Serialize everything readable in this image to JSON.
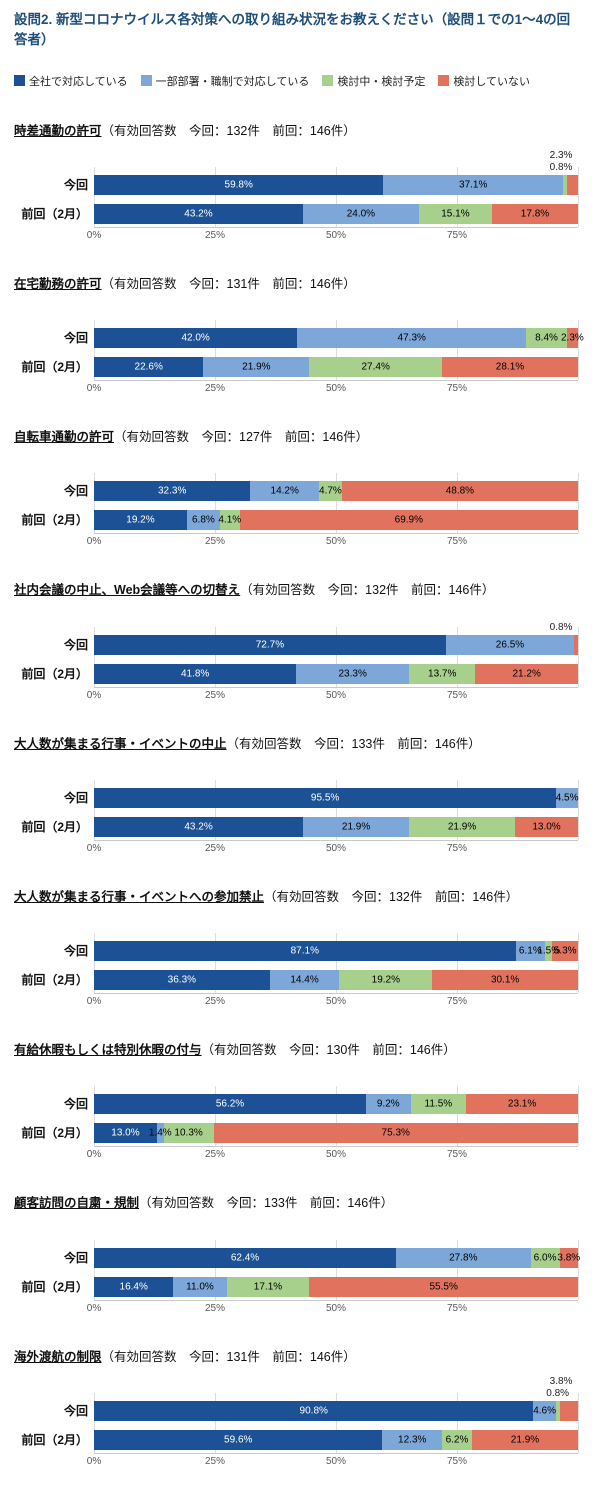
{
  "header": {
    "title": "設問2. 新型コロナウイルス各対策への取り組み状況をお教えください（設問１での1〜4の回答者）"
  },
  "legend": {
    "items": [
      {
        "label": "全社で対応している",
        "color": "#1c5295"
      },
      {
        "label": "一部部署・職制で対応している",
        "color": "#7ca7d8"
      },
      {
        "label": "検討中・検討予定",
        "color": "#a8d08d"
      },
      {
        "label": "検討していない",
        "color": "#e1735e"
      }
    ]
  },
  "axis": {
    "ticks": [
      "0%",
      "25%",
      "50%",
      "75%"
    ],
    "tick_positions": [
      0,
      25,
      50,
      75
    ],
    "grid_positions": [
      0,
      25,
      50,
      75,
      100
    ],
    "xlim": [
      0,
      100
    ]
  },
  "chart_common": {
    "type": "bar",
    "orientation": "horizontal-stacked",
    "series": [
      "全社で対応している",
      "一部部署・職制で対応している",
      "検討中・検討予定",
      "検討していない"
    ],
    "value_unit": "%"
  },
  "chart_data": [
    {
      "title": "時差通勤の許可",
      "subtitle": "（有効回答数　今回：132件　前回：146件）",
      "rows": [
        {
          "label": "今回",
          "values": [
            59.8,
            37.1,
            0.8,
            2.3
          ],
          "label_pos": [
            "in",
            "in",
            "above2",
            "above1"
          ]
        },
        {
          "label": "前回（2月）",
          "values": [
            43.2,
            24.0,
            15.1,
            17.8
          ]
        }
      ]
    },
    {
      "title": "在宅勤務の許可",
      "subtitle": "（有効回答数　今回：131件　前回：146件）",
      "rows": [
        {
          "label": "今回",
          "values": [
            42.0,
            47.3,
            8.4,
            2.3
          ]
        },
        {
          "label": "前回（2月）",
          "values": [
            22.6,
            21.9,
            27.4,
            28.1
          ]
        }
      ]
    },
    {
      "title": "自転車通勤の許可",
      "subtitle": "（有効回答数　今回：127件　前回：146件）",
      "rows": [
        {
          "label": "今回",
          "values": [
            32.3,
            14.2,
            4.7,
            48.8
          ]
        },
        {
          "label": "前回（2月）",
          "values": [
            19.2,
            6.8,
            4.1,
            69.9
          ]
        }
      ]
    },
    {
      "title": "社内会議の中止、Web会議等への切替え",
      "subtitle": "（有効回答数　今回：132件　前回：146件）",
      "rows": [
        {
          "label": "今回",
          "values": [
            72.7,
            26.5,
            0.0,
            0.8
          ],
          "label_pos": [
            "in",
            "in",
            "in",
            "above2"
          ]
        },
        {
          "label": "前回（2月）",
          "values": [
            41.8,
            23.3,
            13.7,
            21.2
          ]
        }
      ]
    },
    {
      "title": "大人数が集まる行事・イベントの中止",
      "subtitle": "（有効回答数　今回：133件　前回：146件）",
      "rows": [
        {
          "label": "今回",
          "values": [
            95.5,
            4.5,
            0.0,
            0.0
          ]
        },
        {
          "label": "前回（2月）",
          "values": [
            43.2,
            21.9,
            21.9,
            13.0
          ]
        }
      ]
    },
    {
      "title": "大人数が集まる行事・イベントへの参加禁止",
      "subtitle": "（有効回答数　今回：132件　前回：146件）",
      "rows": [
        {
          "label": "今回",
          "values": [
            87.1,
            6.1,
            1.5,
            5.3
          ]
        },
        {
          "label": "前回（2月）",
          "values": [
            36.3,
            14.4,
            19.2,
            30.1
          ]
        }
      ]
    },
    {
      "title": "有給休暇もしくは特別休暇の付与",
      "subtitle": "（有効回答数　今回：130件　前回：146件）",
      "rows": [
        {
          "label": "今回",
          "values": [
            56.2,
            9.2,
            11.5,
            23.1
          ]
        },
        {
          "label": "前回（2月）",
          "values": [
            13.0,
            1.4,
            10.3,
            75.3
          ]
        }
      ]
    },
    {
      "title": "顧客訪問の自粛・規制",
      "subtitle": "（有効回答数　今回：133件　前回：146件）",
      "rows": [
        {
          "label": "今回",
          "values": [
            62.4,
            27.8,
            6.0,
            3.8
          ]
        },
        {
          "label": "前回（2月）",
          "values": [
            16.4,
            11.0,
            17.1,
            55.5
          ]
        }
      ]
    },
    {
      "title": "海外渡航の制限",
      "subtitle": "（有効回答数　今回：131件　前回：146件）",
      "rows": [
        {
          "label": "今回",
          "values": [
            90.8,
            4.6,
            0.8,
            3.8
          ],
          "label_pos": [
            "in",
            "in",
            "above2",
            "above1"
          ]
        },
        {
          "label": "前回（2月）",
          "values": [
            59.6,
            12.3,
            6.2,
            21.9
          ]
        }
      ]
    }
  ]
}
